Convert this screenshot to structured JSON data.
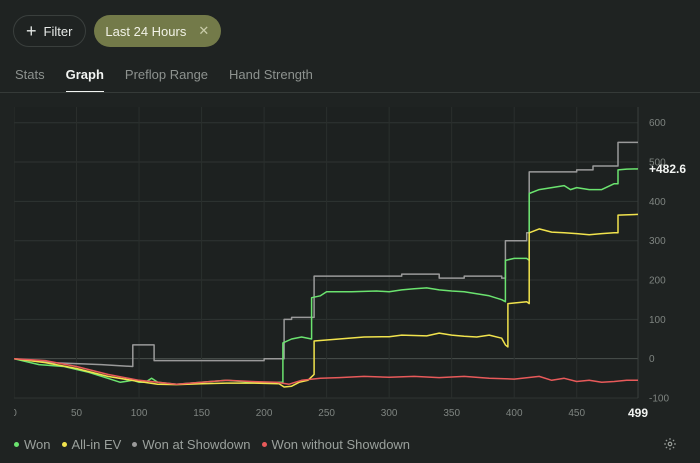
{
  "filters": {
    "filter_label": "Filter",
    "active_label": "Last 24 Hours"
  },
  "tabs": [
    {
      "label": "Stats",
      "active": false
    },
    {
      "label": "Graph",
      "active": true
    },
    {
      "label": "Preflop Range",
      "active": false
    },
    {
      "label": "Hand Strength",
      "active": false
    }
  ],
  "icons": {
    "filter": "plus-icon",
    "remove": "close-icon",
    "settings": "gear-icon"
  },
  "chart_data": {
    "type": "line",
    "x_ticks": [
      0,
      50,
      100,
      150,
      200,
      250,
      300,
      350,
      400,
      450
    ],
    "x_end_label": "499",
    "xlim": [
      0,
      499
    ],
    "y_ticks": [
      600,
      500,
      400,
      300,
      200,
      100,
      0,
      -100
    ],
    "ylim": [
      -100,
      640
    ],
    "end_label": "+482.6",
    "grid": true,
    "legend_position": "bottom-left",
    "series": [
      {
        "name": "Won at Showdown",
        "color": "#9a9a9a",
        "points": [
          [
            0,
            0
          ],
          [
            30,
            -10
          ],
          [
            70,
            -15
          ],
          [
            95,
            -20
          ],
          [
            95,
            35
          ],
          [
            112,
            35
          ],
          [
            112,
            -5
          ],
          [
            200,
            -5
          ],
          [
            200,
            0
          ],
          [
            216,
            0
          ],
          [
            216,
            100
          ],
          [
            222,
            100
          ],
          [
            222,
            105
          ],
          [
            240,
            105
          ],
          [
            240,
            210
          ],
          [
            300,
            210
          ],
          [
            310,
            210
          ],
          [
            310,
            215
          ],
          [
            340,
            215
          ],
          [
            340,
            205
          ],
          [
            360,
            205
          ],
          [
            360,
            210
          ],
          [
            390,
            210
          ],
          [
            390,
            205
          ],
          [
            393,
            205
          ],
          [
            393,
            300
          ],
          [
            410,
            300
          ],
          [
            410,
            320
          ],
          [
            412,
            320
          ],
          [
            412,
            475
          ],
          [
            450,
            475
          ],
          [
            450,
            480
          ],
          [
            463,
            480
          ],
          [
            463,
            490
          ],
          [
            483,
            490
          ],
          [
            483,
            550
          ],
          [
            499,
            550
          ]
        ]
      },
      {
        "name": "Won",
        "color": "#6be36f",
        "points": [
          [
            0,
            0
          ],
          [
            20,
            -15
          ],
          [
            40,
            -20
          ],
          [
            60,
            -35
          ],
          [
            75,
            -50
          ],
          [
            85,
            -60
          ],
          [
            95,
            -55
          ],
          [
            100,
            -60
          ],
          [
            105,
            -60
          ],
          [
            110,
            -50
          ],
          [
            115,
            -60
          ],
          [
            130,
            -65
          ],
          [
            150,
            -60
          ],
          [
            170,
            -55
          ],
          [
            190,
            -60
          ],
          [
            210,
            -60
          ],
          [
            215,
            -60
          ],
          [
            215,
            40
          ],
          [
            222,
            50
          ],
          [
            230,
            55
          ],
          [
            238,
            50
          ],
          [
            238,
            155
          ],
          [
            245,
            160
          ],
          [
            250,
            170
          ],
          [
            270,
            170
          ],
          [
            290,
            172
          ],
          [
            300,
            170
          ],
          [
            310,
            175
          ],
          [
            320,
            178
          ],
          [
            330,
            180
          ],
          [
            340,
            175
          ],
          [
            350,
            172
          ],
          [
            360,
            170
          ],
          [
            370,
            165
          ],
          [
            380,
            160
          ],
          [
            390,
            150
          ],
          [
            393,
            145
          ],
          [
            393,
            250
          ],
          [
            400,
            255
          ],
          [
            410,
            255
          ],
          [
            412,
            250
          ],
          [
            412,
            420
          ],
          [
            420,
            430
          ],
          [
            430,
            435
          ],
          [
            440,
            440
          ],
          [
            445,
            430
          ],
          [
            450,
            435
          ],
          [
            460,
            430
          ],
          [
            470,
            430
          ],
          [
            480,
            445
          ],
          [
            483,
            445
          ],
          [
            483,
            480
          ],
          [
            490,
            482
          ],
          [
            499,
            482.6
          ]
        ]
      },
      {
        "name": "All-in EV",
        "color": "#f1e34d",
        "points": [
          [
            0,
            0
          ],
          [
            25,
            -10
          ],
          [
            50,
            -25
          ],
          [
            75,
            -45
          ],
          [
            100,
            -58
          ],
          [
            115,
            -65
          ],
          [
            130,
            -66
          ],
          [
            150,
            -64
          ],
          [
            170,
            -62
          ],
          [
            190,
            -62
          ],
          [
            212,
            -64
          ],
          [
            216,
            -72
          ],
          [
            222,
            -70
          ],
          [
            228,
            -60
          ],
          [
            235,
            -55
          ],
          [
            240,
            -40
          ],
          [
            240,
            45
          ],
          [
            260,
            50
          ],
          [
            280,
            55
          ],
          [
            300,
            56
          ],
          [
            310,
            60
          ],
          [
            330,
            58
          ],
          [
            340,
            65
          ],
          [
            350,
            60
          ],
          [
            360,
            57
          ],
          [
            370,
            55
          ],
          [
            380,
            60
          ],
          [
            390,
            52
          ],
          [
            393,
            35
          ],
          [
            395,
            30
          ],
          [
            395,
            140
          ],
          [
            410,
            145
          ],
          [
            412,
            140
          ],
          [
            412,
            320
          ],
          [
            420,
            330
          ],
          [
            430,
            322
          ],
          [
            440,
            320
          ],
          [
            450,
            318
          ],
          [
            460,
            315
          ],
          [
            470,
            318
          ],
          [
            480,
            320
          ],
          [
            483,
            320
          ],
          [
            483,
            365
          ],
          [
            499,
            367
          ]
        ]
      },
      {
        "name": "Won without Showdown",
        "color": "#e85a5a",
        "points": [
          [
            0,
            0
          ],
          [
            25,
            -5
          ],
          [
            50,
            -20
          ],
          [
            75,
            -40
          ],
          [
            100,
            -55
          ],
          [
            115,
            -60
          ],
          [
            130,
            -65
          ],
          [
            150,
            -60
          ],
          [
            170,
            -55
          ],
          [
            190,
            -58
          ],
          [
            210,
            -60
          ],
          [
            220,
            -65
          ],
          [
            230,
            -55
          ],
          [
            245,
            -50
          ],
          [
            260,
            -48
          ],
          [
            280,
            -45
          ],
          [
            300,
            -47
          ],
          [
            320,
            -45
          ],
          [
            340,
            -48
          ],
          [
            360,
            -45
          ],
          [
            380,
            -50
          ],
          [
            400,
            -52
          ],
          [
            420,
            -45
          ],
          [
            430,
            -55
          ],
          [
            440,
            -50
          ],
          [
            450,
            -58
          ],
          [
            460,
            -55
          ],
          [
            470,
            -60
          ],
          [
            480,
            -58
          ],
          [
            490,
            -55
          ],
          [
            499,
            -55
          ]
        ]
      }
    ]
  }
}
